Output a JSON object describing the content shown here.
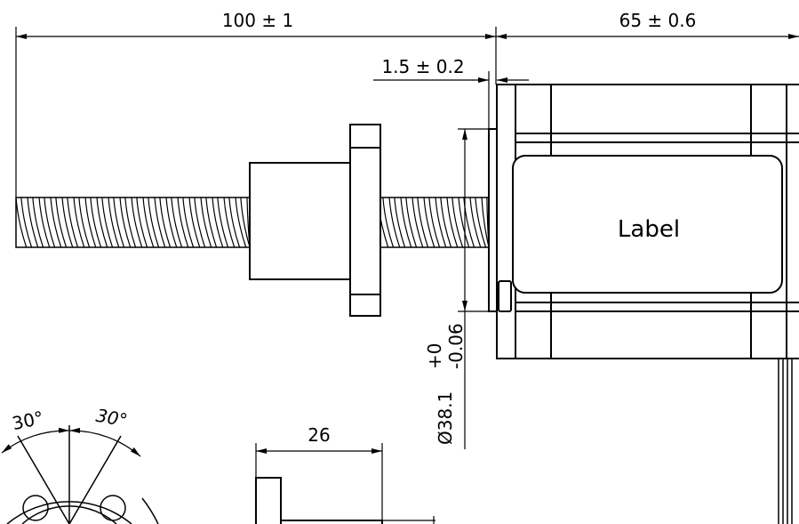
{
  "dimensions": {
    "screw_length": "100 ± 1",
    "motor_length": "65 ± 0.6",
    "flange_thickness": "1.5 ± 0.2",
    "pilot_diameter": "Ø38.1",
    "pilot_tolerance_upper": "+0",
    "pilot_tolerance_lower": "-0.06",
    "angle_left": "30°",
    "angle_right": "30°",
    "nut_width": "26"
  },
  "motor": {
    "label": "Label"
  },
  "colors": {
    "line": "#000000",
    "background": "#ffffff"
  }
}
